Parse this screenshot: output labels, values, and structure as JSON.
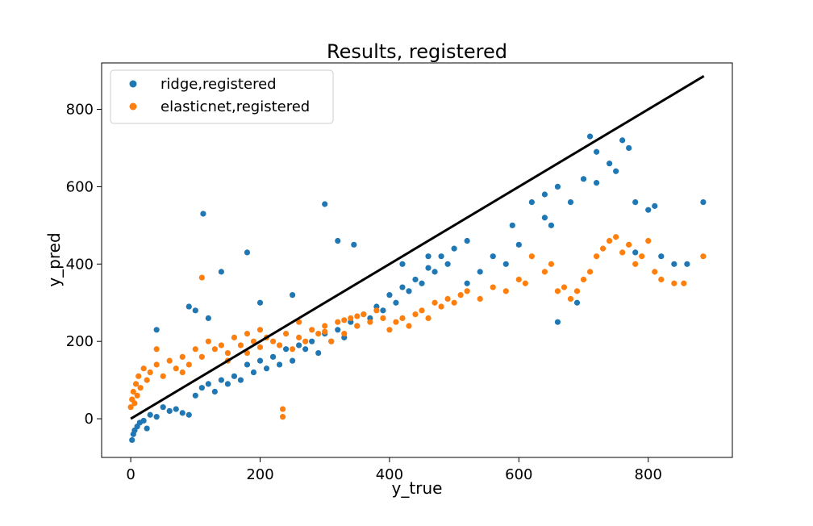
{
  "chart_data": {
    "type": "scatter",
    "title": "Results, registered",
    "xlabel": "y_true",
    "ylabel": "y_pred",
    "xlim": [
      -45,
      930
    ],
    "ylim": [
      -100,
      920
    ],
    "xticks": [
      0,
      200,
      400,
      600,
      800
    ],
    "yticks": [
      0,
      200,
      400,
      600,
      800
    ],
    "grid": false,
    "legend_position": "top-left",
    "series": [
      {
        "name": "ridge,registered",
        "color": "#1f77b4",
        "points": [
          [
            2,
            -55
          ],
          [
            4,
            -40
          ],
          [
            6,
            -30
          ],
          [
            10,
            -20
          ],
          [
            14,
            -10
          ],
          [
            20,
            -5
          ],
          [
            25,
            -25
          ],
          [
            30,
            10
          ],
          [
            40,
            5
          ],
          [
            50,
            30
          ],
          [
            60,
            20
          ],
          [
            70,
            25
          ],
          [
            80,
            15
          ],
          [
            90,
            10
          ],
          [
            100,
            60
          ],
          [
            110,
            80
          ],
          [
            120,
            90
          ],
          [
            130,
            70
          ],
          [
            140,
            100
          ],
          [
            150,
            90
          ],
          [
            160,
            110
          ],
          [
            170,
            100
          ],
          [
            180,
            140
          ],
          [
            190,
            120
          ],
          [
            200,
            150
          ],
          [
            210,
            130
          ],
          [
            220,
            160
          ],
          [
            230,
            140
          ],
          [
            240,
            180
          ],
          [
            250,
            150
          ],
          [
            260,
            190
          ],
          [
            270,
            180
          ],
          [
            280,
            200
          ],
          [
            290,
            170
          ],
          [
            300,
            220
          ],
          [
            310,
            200
          ],
          [
            320,
            230
          ],
          [
            330,
            210
          ],
          [
            340,
            250
          ],
          [
            350,
            240
          ],
          [
            360,
            270
          ],
          [
            370,
            260
          ],
          [
            380,
            290
          ],
          [
            390,
            280
          ],
          [
            400,
            320
          ],
          [
            410,
            300
          ],
          [
            420,
            340
          ],
          [
            430,
            330
          ],
          [
            440,
            360
          ],
          [
            450,
            350
          ],
          [
            460,
            390
          ],
          [
            470,
            380
          ],
          [
            480,
            420
          ],
          [
            490,
            400
          ],
          [
            500,
            440
          ],
          [
            520,
            460
          ],
          [
            540,
            380
          ],
          [
            560,
            420
          ],
          [
            580,
            400
          ],
          [
            600,
            450
          ],
          [
            620,
            560
          ],
          [
            640,
            520
          ],
          [
            660,
            600
          ],
          [
            680,
            560
          ],
          [
            700,
            620
          ],
          [
            710,
            730
          ],
          [
            720,
            690
          ],
          [
            740,
            660
          ],
          [
            750,
            640
          ],
          [
            760,
            720
          ],
          [
            770,
            700
          ],
          [
            780,
            560
          ],
          [
            800,
            540
          ],
          [
            810,
            550
          ],
          [
            820,
            420
          ],
          [
            840,
            400
          ],
          [
            860,
            400
          ],
          [
            885,
            560
          ],
          [
            112,
            530
          ],
          [
            300,
            555
          ],
          [
            180,
            430
          ],
          [
            320,
            460
          ],
          [
            345,
            450
          ],
          [
            90,
            290
          ],
          [
            100,
            280
          ],
          [
            120,
            260
          ],
          [
            140,
            380
          ],
          [
            650,
            500
          ],
          [
            660,
            250
          ],
          [
            690,
            300
          ],
          [
            40,
            230
          ],
          [
            200,
            300
          ],
          [
            250,
            320
          ],
          [
            420,
            400
          ],
          [
            460,
            420
          ],
          [
            520,
            350
          ],
          [
            590,
            500
          ],
          [
            640,
            580
          ],
          [
            720,
            610
          ],
          [
            780,
            430
          ]
        ]
      },
      {
        "name": "elasticnet,registered",
        "color": "#ff7f0e",
        "points": [
          [
            0,
            30
          ],
          [
            2,
            50
          ],
          [
            4,
            70
          ],
          [
            6,
            40
          ],
          [
            8,
            90
          ],
          [
            10,
            60
          ],
          [
            12,
            110
          ],
          [
            15,
            80
          ],
          [
            20,
            130
          ],
          [
            25,
            100
          ],
          [
            30,
            120
          ],
          [
            40,
            140
          ],
          [
            50,
            110
          ],
          [
            60,
            150
          ],
          [
            70,
            130
          ],
          [
            80,
            160
          ],
          [
            90,
            140
          ],
          [
            100,
            180
          ],
          [
            110,
            160
          ],
          [
            120,
            200
          ],
          [
            130,
            180
          ],
          [
            140,
            190
          ],
          [
            150,
            170
          ],
          [
            160,
            210
          ],
          [
            170,
            190
          ],
          [
            180,
            220
          ],
          [
            190,
            200
          ],
          [
            200,
            230
          ],
          [
            210,
            210
          ],
          [
            220,
            200
          ],
          [
            230,
            190
          ],
          [
            240,
            220
          ],
          [
            250,
            180
          ],
          [
            260,
            210
          ],
          [
            270,
            200
          ],
          [
            280,
            230
          ],
          [
            290,
            220
          ],
          [
            300,
            240
          ],
          [
            310,
            200
          ],
          [
            320,
            250
          ],
          [
            330,
            220
          ],
          [
            340,
            260
          ],
          [
            350,
            240
          ],
          [
            360,
            270
          ],
          [
            370,
            250
          ],
          [
            380,
            280
          ],
          [
            390,
            260
          ],
          [
            400,
            230
          ],
          [
            410,
            250
          ],
          [
            420,
            260
          ],
          [
            430,
            240
          ],
          [
            440,
            270
          ],
          [
            450,
            280
          ],
          [
            460,
            260
          ],
          [
            470,
            300
          ],
          [
            480,
            290
          ],
          [
            490,
            310
          ],
          [
            500,
            300
          ],
          [
            510,
            320
          ],
          [
            520,
            330
          ],
          [
            540,
            310
          ],
          [
            560,
            340
          ],
          [
            580,
            330
          ],
          [
            600,
            360
          ],
          [
            610,
            350
          ],
          [
            620,
            420
          ],
          [
            640,
            380
          ],
          [
            650,
            400
          ],
          [
            660,
            330
          ],
          [
            670,
            340
          ],
          [
            680,
            310
          ],
          [
            690,
            330
          ],
          [
            700,
            360
          ],
          [
            710,
            380
          ],
          [
            720,
            420
          ],
          [
            730,
            440
          ],
          [
            740,
            460
          ],
          [
            750,
            470
          ],
          [
            760,
            430
          ],
          [
            770,
            450
          ],
          [
            780,
            400
          ],
          [
            790,
            420
          ],
          [
            800,
            460
          ],
          [
            810,
            380
          ],
          [
            820,
            360
          ],
          [
            840,
            350
          ],
          [
            855,
            350
          ],
          [
            885,
            420
          ],
          [
            110,
            365
          ],
          [
            235,
            25
          ],
          [
            235,
            5
          ],
          [
            300,
            225
          ],
          [
            330,
            255
          ],
          [
            40,
            180
          ],
          [
            80,
            120
          ],
          [
            150,
            150
          ],
          [
            180,
            170
          ],
          [
            200,
            185
          ],
          [
            260,
            250
          ],
          [
            350,
            265
          ]
        ]
      },
      {
        "name": "",
        "type": "line",
        "color": "#000000",
        "points": [
          [
            0,
            0
          ],
          [
            886,
            886
          ]
        ]
      }
    ]
  }
}
